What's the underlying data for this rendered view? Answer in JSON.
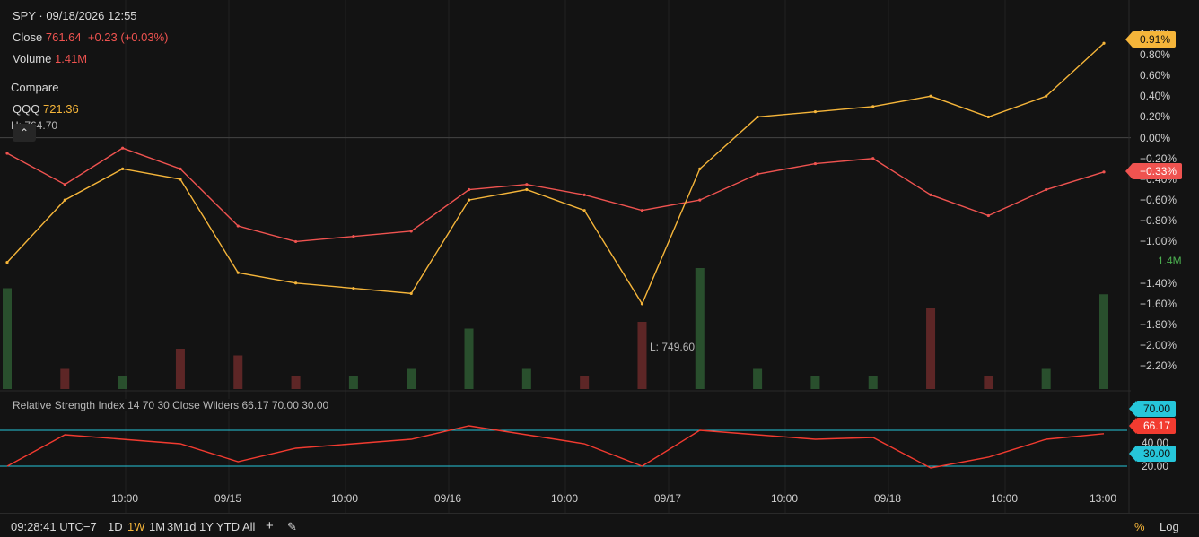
{
  "header": {
    "title": "SPY · 09/18/2026 12:55",
    "close_label": "Close",
    "close_value": "761.64",
    "close_change": "+0.23 (+0.03%)",
    "volume_label": "Volume",
    "volume_value": "1.41M",
    "compare_label": "Compare",
    "compare_symbol": "QQQ",
    "compare_value": "721.36",
    "high_label": "H: 764.70",
    "low_label": "L: 749.60"
  },
  "right_axis": {
    "ticks": [
      "1.00%",
      "0.80%",
      "0.60%",
      "0.40%",
      "0.20%",
      "0.00%",
      "−0.20%",
      "−0.40%",
      "−0.60%",
      "−0.80%",
      "−1.00%",
      "−1.40%",
      "−1.60%",
      "−1.80%",
      "−2.00%",
      "−2.20%"
    ],
    "qqq_badge": "0.91%",
    "spy_badge": "−0.33%",
    "volume_badge": "1.4M"
  },
  "rsi": {
    "legend": "Relative Strength Index  14  70  30  Close  Wilders  66.17  70.00  30.00",
    "badge_upper": "70.00",
    "badge_value": "66.17",
    "badge_lower": "30.00",
    "tick_40": "40.00",
    "tick_20": "20.00"
  },
  "x_axis": {
    "ticks": [
      "10:00",
      "09/15",
      "10:00",
      "09/16",
      "10:00",
      "09/17",
      "10:00",
      "09/18",
      "10:00",
      "13:00"
    ]
  },
  "footer": {
    "time": "09:28:41 UTC−7",
    "ranges": [
      "1D",
      "1W",
      "1M",
      "3M",
      "1d",
      "1Y",
      "YTD",
      "All"
    ],
    "active_range": "1W",
    "add_icon": "plus-icon",
    "draw_icon": "pencil-icon",
    "percent_label": "%",
    "log_label": "Log"
  },
  "colors": {
    "spy": "#ef5350",
    "spy_up": "#4caf50",
    "qqq": "#f5b53a",
    "rsi": "#f23b30",
    "rsi_band": "#26c6da",
    "bg": "#131313"
  },
  "chart_data": {
    "type": "line",
    "x": [
      "09/14 09:30",
      "09/14 10:00",
      "09/14 12:00",
      "09/14 13:00",
      "09/15 09:30",
      "09/15 10:00",
      "09/15 12:00",
      "09/15 13:00",
      "09/16 09:30",
      "09/16 10:00",
      "09/16 12:00",
      "09/16 13:00",
      "09/17 09:30",
      "09/17 10:00",
      "09/17 12:00",
      "09/17 13:00",
      "09/18 09:30",
      "09/18 10:00",
      "09/18 12:00",
      "09/18 12:55"
    ],
    "series": [
      {
        "name": "SPY",
        "values": [
          -0.15,
          -0.45,
          -0.1,
          -0.3,
          -0.85,
          -1.0,
          -0.95,
          -0.9,
          -0.5,
          -0.45,
          -0.55,
          -0.7,
          -0.6,
          -0.35,
          -0.25,
          -0.2,
          -0.55,
          -0.75,
          -0.5,
          -0.33
        ]
      },
      {
        "name": "QQQ",
        "values": [
          -1.2,
          -0.6,
          -0.3,
          -0.4,
          -1.3,
          -1.4,
          -1.45,
          -1.5,
          -0.6,
          -0.5,
          -0.7,
          -1.6,
          -0.3,
          0.2,
          0.25,
          0.3,
          0.4,
          0.2,
          0.4,
          0.91
        ]
      }
    ],
    "volume": [
      1.5,
      0.3,
      0.2,
      0.6,
      0.5,
      0.2,
      0.2,
      0.3,
      0.9,
      0.3,
      0.2,
      1.0,
      1.8,
      0.3,
      0.2,
      0.2,
      1.2,
      0.2,
      0.3,
      1.41
    ],
    "rsi": [
      30,
      65,
      60,
      55,
      35,
      50,
      55,
      60,
      75,
      65,
      55,
      30,
      70,
      65,
      60,
      62,
      28,
      40,
      60,
      66.17
    ],
    "ylim": [
      -2.3,
      1.05
    ],
    "rsi_levels": [
      70,
      30
    ]
  }
}
